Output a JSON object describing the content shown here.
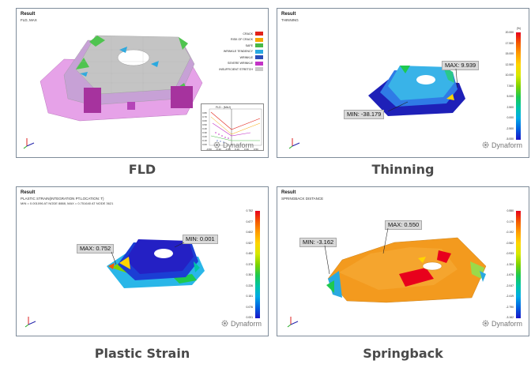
{
  "panels": {
    "fld": {
      "header": "Result",
      "subtitle": "FLD, MAX",
      "caption": "FLD",
      "legend": [
        {
          "label": "CRACK",
          "color": "#e2231a"
        },
        {
          "label": "RISK OF CRACK",
          "color": "#f7a600"
        },
        {
          "label": "SAFE",
          "color": "#48b948"
        },
        {
          "label": "WRINKLE TENDENCY",
          "color": "#2aa9e0"
        },
        {
          "label": "WRINKLE",
          "color": "#2b4db8"
        },
        {
          "label": "SEVERE WRINKLE",
          "color": "#c334c6"
        },
        {
          "label": "INSUFFICIENT STRETCH",
          "color": "#c9c9c9"
        }
      ],
      "plot": {
        "title": "FLD - (MAJ)",
        "y_ticks": [
          "0.80",
          "0.70",
          "0.60",
          "0.50",
          "0.40",
          "0.30",
          "0.20",
          "0.10",
          "0.00"
        ],
        "x_ticks": [
          "-0.50",
          "-0.30",
          "-0.10",
          "0.10",
          "0.30",
          "0.50"
        ]
      },
      "brand": "Dynaform"
    },
    "thinning": {
      "header": "Result",
      "subtitle": "THINNING",
      "caption": "Thinning",
      "max_label": "MAX: 9.939",
      "min_label": "MIN: -38.179",
      "scale_unit": "(%)",
      "scale_ticks": [
        "20.000",
        "17.500",
        "15.000",
        "12.500",
        "10.000",
        "7.500",
        "5.000",
        "2.500",
        "0.000",
        "-2.500",
        "-5.000"
      ],
      "scale_colors": [
        "#e8001c",
        "#f45a00",
        "#ff9d00",
        "#ffd400",
        "#d7e800",
        "#7fd300",
        "#1ec94f",
        "#00c4a6",
        "#00a9e6",
        "#0061e0",
        "#1a15c8"
      ],
      "brand": "Dynaform"
    },
    "plastic": {
      "header": "Result",
      "subtitle": "PLASTIC STRAIN(INTEGRATION PT.LOCATION: T)",
      "subtitle2": "MIN =      0.001096  AT NODE 8888, MAX =      0.751640  AT NODE 3621",
      "caption": "Plastic Strain",
      "max_label": "MAX: 0.752",
      "min_label": "MIN: 0.001",
      "scale_ticks": [
        "0.752",
        "0.677",
        "0.602",
        "0.527",
        "0.452",
        "0.376",
        "0.301",
        "0.226",
        "0.151",
        "0.076",
        "0.001"
      ],
      "scale_colors": [
        "#e8001c",
        "#f45a00",
        "#ff9d00",
        "#ffd400",
        "#d7e800",
        "#7fd300",
        "#1ec94f",
        "#00c4a6",
        "#00a9e6",
        "#0061e0",
        "#1a15c8"
      ],
      "brand": "Dynaform"
    },
    "springback": {
      "header": "Result",
      "subtitle": "SPRINGBACK DISTANCE",
      "caption": "Springback",
      "max_label": "MAX: 0.550",
      "min_label": "MIN: -3.162",
      "scale_ticks": [
        "0.550",
        "0.179",
        "-0.192",
        "-0.562",
        "-0.933",
        "-1.304",
        "-1.676",
        "-2.047",
        "-2.419",
        "-2.790",
        "-3.162"
      ],
      "scale_colors": [
        "#e8001c",
        "#f45a00",
        "#ff9d00",
        "#ffd400",
        "#d7e800",
        "#7fd300",
        "#1ec94f",
        "#00c4a6",
        "#00a9e6",
        "#0061e0",
        "#1a15c8"
      ],
      "brand": "Dynaform"
    }
  }
}
